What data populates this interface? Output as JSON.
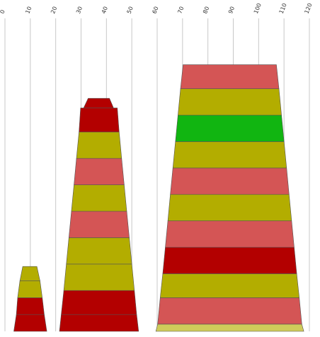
{
  "chart_data": {
    "type": "stacked-tapered-bar",
    "title": "",
    "xlabel": "",
    "ylabel": "",
    "xlim": [
      0,
      120
    ],
    "x_ticks": [
      "0",
      "10",
      "20",
      "30",
      "40",
      "50",
      "60",
      "70",
      "80",
      "90",
      "100",
      "110",
      "120"
    ],
    "grid": true,
    "legend": "none",
    "colors": {
      "red": "#b30000",
      "pink": "#d45555",
      "olive": "#b3ad00",
      "green": "#11b511",
      "khaki": "#cfcb5a"
    },
    "stacks": [
      {
        "segments": [
          {
            "color": "red",
            "left": [
              3.5,
              4.5
            ],
            "right": [
              16.5,
              15.5
            ],
            "y": [
              0,
              7
            ]
          },
          {
            "color": "red",
            "left": [
              4.5,
              5.0
            ],
            "right": [
              15.5,
              14.7
            ],
            "y": [
              7,
              14
            ]
          },
          {
            "color": "olive",
            "left": [
              5.0,
              5.9
            ],
            "right": [
              14.7,
              13.8
            ],
            "y": [
              14,
              21
            ]
          },
          {
            "color": "olive",
            "left": [
              5.9,
              7.0
            ],
            "right": [
              13.8,
              12.6
            ],
            "y": [
              21,
              27
            ]
          }
        ]
      },
      {
        "segments": [
          {
            "color": "red",
            "left": [
              21.5,
              22.2
            ],
            "right": [
              52.7,
              51.9
            ],
            "y": [
              0,
              7
            ]
          },
          {
            "color": "red",
            "left": [
              22.2,
              23.2
            ],
            "right": [
              51.9,
              51.0
            ],
            "y": [
              7,
              17
            ]
          },
          {
            "color": "olive",
            "left": [
              23.2,
              24.2
            ],
            "right": [
              51.0,
              50.0
            ],
            "y": [
              17,
              28
            ]
          },
          {
            "color": "olive",
            "left": [
              24.2,
              25.2
            ],
            "right": [
              50.0,
              49.0
            ],
            "y": [
              28,
              39
            ]
          },
          {
            "color": "pink",
            "left": [
              25.2,
              26.2
            ],
            "right": [
              49.0,
              48.0
            ],
            "y": [
              39,
              50
            ]
          },
          {
            "color": "olive",
            "left": [
              26.2,
              27.2
            ],
            "right": [
              48.0,
              47.0
            ],
            "y": [
              50,
              61
            ]
          },
          {
            "color": "pink",
            "left": [
              27.2,
              28.2
            ],
            "right": [
              47.0,
              46.0
            ],
            "y": [
              61,
              72
            ]
          },
          {
            "color": "olive",
            "left": [
              28.2,
              29.2
            ],
            "right": [
              46.0,
              45.0
            ],
            "y": [
              72,
              83
            ]
          },
          {
            "color": "red",
            "left": [
              29.2,
              29.8
            ],
            "right": [
              45.0,
              44.3
            ],
            "y": [
              83,
              93
            ]
          },
          {
            "color": "red",
            "left": [
              31.0,
              32.8
            ],
            "right": [
              42.8,
              41.2
            ],
            "y": [
              93,
              97
            ]
          }
        ]
      },
      {
        "segments": [
          {
            "color": "khaki",
            "left": [
              59.5,
              60.2
            ],
            "right": [
              117.8,
              117.0
            ],
            "y": [
              0,
              3
            ]
          },
          {
            "color": "pink",
            "left": [
              60.2,
              61.2
            ],
            "right": [
              117.0,
              116.0
            ],
            "y": [
              3,
              14
            ]
          },
          {
            "color": "olive",
            "left": [
              61.2,
              62.2
            ],
            "right": [
              116.0,
              115.0
            ],
            "y": [
              14,
              24
            ]
          },
          {
            "color": "red",
            "left": [
              62.2,
              63.2
            ],
            "right": [
              115.0,
              114.0
            ],
            "y": [
              24,
              35
            ]
          },
          {
            "color": "pink",
            "left": [
              63.2,
              64.2
            ],
            "right": [
              114.0,
              113.0
            ],
            "y": [
              35,
              46
            ]
          },
          {
            "color": "olive",
            "left": [
              64.2,
              65.2
            ],
            "right": [
              113.0,
              112.0
            ],
            "y": [
              46,
              57
            ]
          },
          {
            "color": "pink",
            "left": [
              65.2,
              66.2
            ],
            "right": [
              112.0,
              111.0
            ],
            "y": [
              57,
              68
            ]
          },
          {
            "color": "olive",
            "left": [
              66.2,
              67.2
            ],
            "right": [
              111.0,
              110.0
            ],
            "y": [
              68,
              79
            ]
          },
          {
            "color": "green",
            "left": [
              67.2,
              68.2
            ],
            "right": [
              110.0,
              109.0
            ],
            "y": [
              79,
              90
            ]
          },
          {
            "color": "olive",
            "left": [
              68.2,
              69.2
            ],
            "right": [
              109.0,
              108.0
            ],
            "y": [
              90,
              101
            ]
          },
          {
            "color": "pink",
            "left": [
              69.2,
              70.2
            ],
            "right": [
              108.0,
              107.0
            ],
            "y": [
              101,
              111
            ]
          }
        ]
      }
    ]
  }
}
